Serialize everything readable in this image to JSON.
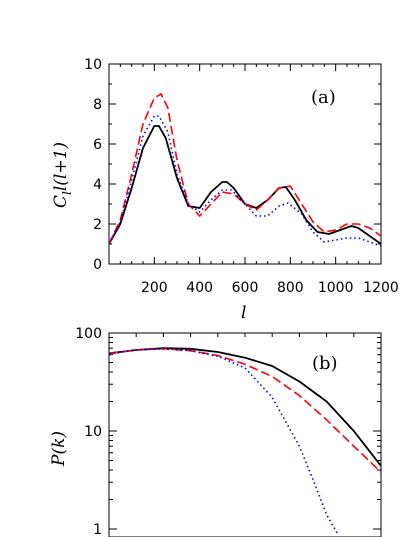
{
  "chart_data": [
    {
      "type": "line",
      "panel_label": "(a)",
      "xlabel": "l",
      "ylabel_base": "C",
      "ylabel_sub": "l",
      "ylabel_rest": "l(l+1)",
      "xlim": [
        0,
        1200
      ],
      "ylim": [
        0,
        10
      ],
      "xticks": [
        200,
        400,
        600,
        800,
        1000,
        1200
      ],
      "xtick_labels": [
        "200",
        "400",
        "600",
        "800",
        "1000",
        "1200"
      ],
      "yticks": [
        0,
        2,
        4,
        6,
        8,
        10
      ],
      "ytick_labels": [
        "0",
        "2",
        "4",
        "6",
        "8",
        "10"
      ],
      "series": [
        {
          "color": "#000000",
          "style": "solid",
          "x": [
            0,
            50,
            100,
            150,
            200,
            220,
            250,
            300,
            350,
            400,
            450,
            500,
            520,
            550,
            600,
            650,
            700,
            750,
            780,
            820,
            870,
            920,
            970,
            1020,
            1070,
            1100,
            1150,
            1200
          ],
          "y": [
            1.0,
            2.0,
            3.8,
            5.8,
            6.9,
            6.9,
            6.3,
            4.3,
            2.9,
            2.8,
            3.6,
            4.1,
            4.1,
            3.8,
            3.0,
            2.8,
            3.2,
            3.8,
            3.85,
            3.2,
            2.2,
            1.6,
            1.5,
            1.7,
            1.9,
            1.8,
            1.4,
            1.0
          ]
        },
        {
          "color": "#ff0000",
          "style": "dashed",
          "x": [
            0,
            50,
            100,
            150,
            200,
            230,
            260,
            300,
            350,
            400,
            450,
            500,
            550,
            600,
            650,
            700,
            750,
            800,
            850,
            900,
            950,
            1000,
            1050,
            1100,
            1150,
            1200
          ],
          "y": [
            1.0,
            2.2,
            4.5,
            7.0,
            8.3,
            8.5,
            7.8,
            5.2,
            3.0,
            2.4,
            3.0,
            3.6,
            3.5,
            3.0,
            2.7,
            3.2,
            3.8,
            3.9,
            3.0,
            2.1,
            1.6,
            1.7,
            2.0,
            2.0,
            1.8,
            1.4
          ]
        },
        {
          "color": "#0000ff",
          "style": "dotted",
          "x": [
            0,
            50,
            100,
            150,
            200,
            220,
            260,
            300,
            350,
            400,
            450,
            500,
            540,
            600,
            650,
            700,
            750,
            790,
            850,
            900,
            950,
            1000,
            1050,
            1100,
            1150,
            1200
          ],
          "y": [
            1.0,
            2.1,
            4.2,
            6.4,
            7.4,
            7.4,
            6.6,
            4.5,
            3.0,
            2.6,
            3.2,
            3.7,
            3.7,
            3.0,
            2.4,
            2.4,
            2.9,
            3.05,
            2.5,
            1.6,
            1.1,
            1.2,
            1.3,
            1.3,
            1.1,
            0.9
          ]
        }
      ]
    },
    {
      "type": "line",
      "panel_label": "(b)",
      "ylabel": "P(k)",
      "yscale": "log",
      "ylim": [
        1,
        100
      ],
      "yticks": [
        1,
        10,
        100
      ],
      "ytick_labels": [
        "1",
        "10",
        "100"
      ],
      "xlim": [
        0,
        1
      ],
      "series": [
        {
          "color": "#000000",
          "style": "solid",
          "x": [
            0,
            0.1,
            0.2,
            0.3,
            0.4,
            0.5,
            0.6,
            0.7,
            0.8,
            0.9,
            1.0
          ],
          "y": [
            62,
            67,
            70,
            69,
            64,
            56,
            46,
            32,
            20,
            10,
            4.4
          ]
        },
        {
          "color": "#ff0000",
          "style": "dashed",
          "x": [
            0,
            0.1,
            0.2,
            0.3,
            0.4,
            0.5,
            0.6,
            0.7,
            0.8,
            0.9,
            1.0
          ],
          "y": [
            62,
            67,
            69,
            66,
            59,
            48,
            36,
            23,
            13,
            7,
            3.8
          ]
        },
        {
          "color": "#0000ff",
          "style": "dotted",
          "x": [
            0,
            0.1,
            0.2,
            0.3,
            0.4,
            0.5,
            0.6,
            0.7,
            0.75,
            0.8,
            0.84
          ],
          "y": [
            61,
            67,
            69,
            66,
            58,
            44,
            22,
            7,
            3.2,
            1.4,
            0.9
          ]
        }
      ]
    }
  ]
}
